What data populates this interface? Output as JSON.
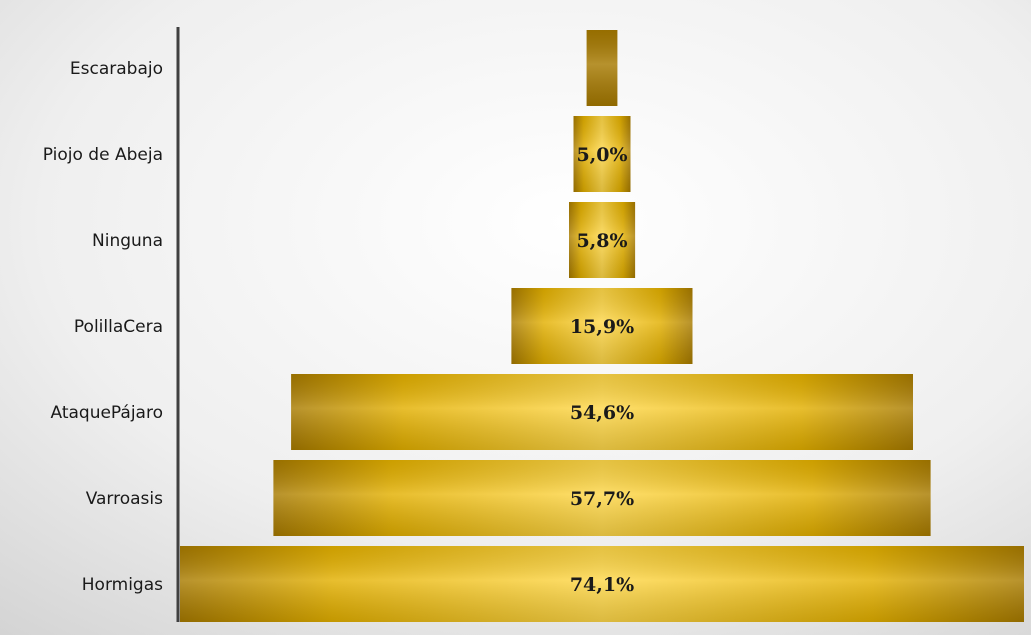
{
  "chart_data": {
    "type": "bar",
    "orientation": "horizontal",
    "centered": true,
    "categories": [
      "Escarabajo",
      "Piojo de Abeja",
      "Ninguna",
      "PolillaCera",
      "AtaquePájaro",
      "Varroasis",
      "Hormigas"
    ],
    "values": [
      2.7,
      5.0,
      5.8,
      15.9,
      54.6,
      57.7,
      74.1
    ],
    "data_labels": [
      "",
      "5,0%",
      "5,8%",
      "15,9%",
      "54,6%",
      "57,7%",
      "74,1%"
    ],
    "title": "",
    "xlabel": "",
    "ylabel": "",
    "xlim": [
      0,
      74.1
    ],
    "grid": false,
    "legend": "none",
    "colors": {
      "bar_dark": "#A87B00",
      "bar_mid": "#E3B000",
      "bar_light": "#FFD84A",
      "bar_top_small": "#A77A00",
      "axis": "#404040",
      "background_light": "#ffffff",
      "background_dark": "#d6d6d6"
    }
  }
}
